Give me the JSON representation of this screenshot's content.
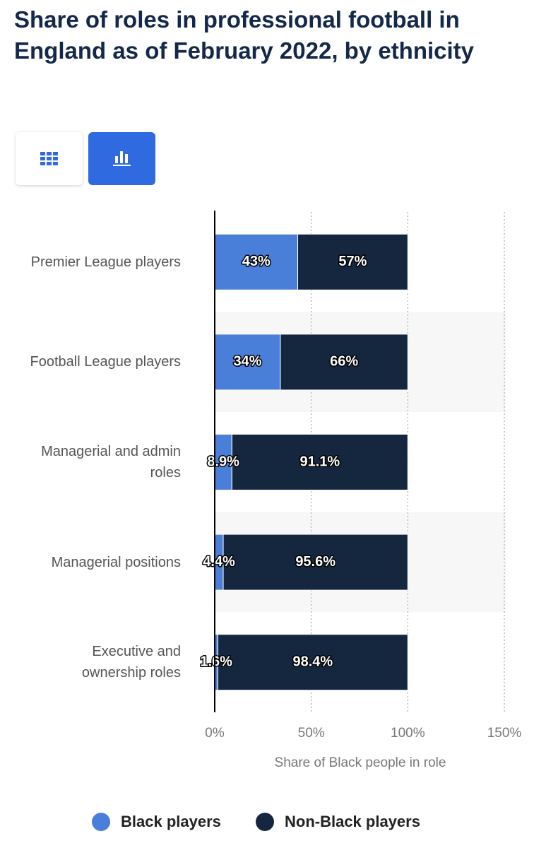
{
  "chart_data": {
    "type": "stacked_bar_horizontal",
    "title": "Share of roles in professional football in England as of February 2022, by ethnicity",
    "categories": [
      "Premier League players",
      "Football League players",
      "Managerial and admin roles",
      "Managerial positions",
      "Executive and ownership roles"
    ],
    "series": [
      {
        "name": "Black players",
        "color": "#4a7fd9",
        "values": [
          43,
          34,
          8.9,
          4.4,
          1.6
        ],
        "value_labels": [
          "43%",
          "34%",
          "8.9%",
          "4.4%",
          "1.6%"
        ]
      },
      {
        "name": "Non-Black players",
        "color": "#15273f",
        "values": [
          57,
          66,
          91.1,
          95.6,
          98.4
        ],
        "value_labels": [
          "57%",
          "66%",
          "91.1%",
          "95.6%",
          "98.4%"
        ]
      }
    ],
    "xlabel": "Share of Black people in role",
    "xlim": [
      0,
      150
    ],
    "xticks": [
      {
        "value": 0,
        "label": "0%"
      },
      {
        "value": 50,
        "label": "50%"
      },
      {
        "value": 100,
        "label": "100%"
      },
      {
        "value": 150,
        "label": "150%"
      }
    ],
    "grid": true,
    "legend": "bottom"
  }
}
